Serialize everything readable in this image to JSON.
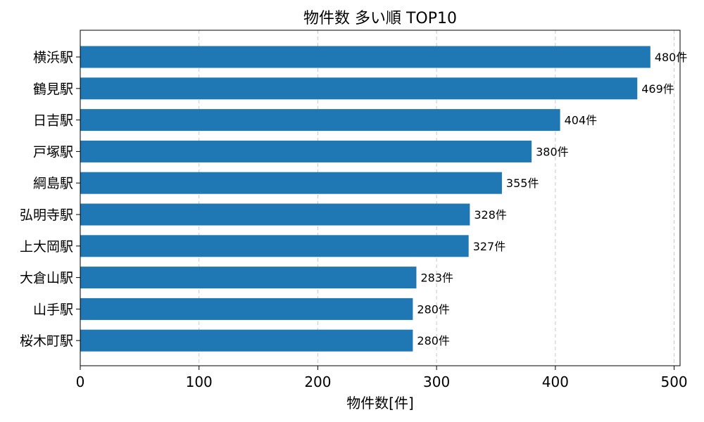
{
  "chart_data": {
    "type": "bar",
    "orientation": "horizontal",
    "title": "物件数 多い順 TOP10",
    "xlabel": "物件数[件]",
    "ylabel": "",
    "xlim": [
      0,
      505
    ],
    "xticks": [
      0,
      100,
      200,
      300,
      400,
      500
    ],
    "grid": "x-dashed",
    "bar_color": "#1f77b4",
    "categories": [
      "横浜駅",
      "鶴見駅",
      "日吉駅",
      "戸塚駅",
      "綱島駅",
      "弘明寺駅",
      "上大岡駅",
      "大倉山駅",
      "山手駅",
      "桜木町駅"
    ],
    "values": [
      480,
      469,
      404,
      380,
      355,
      328,
      327,
      283,
      280,
      280
    ],
    "data_labels": [
      "480件",
      "469件",
      "404件",
      "380件",
      "355件",
      "328件",
      "327件",
      "283件",
      "280件",
      "280件"
    ]
  }
}
